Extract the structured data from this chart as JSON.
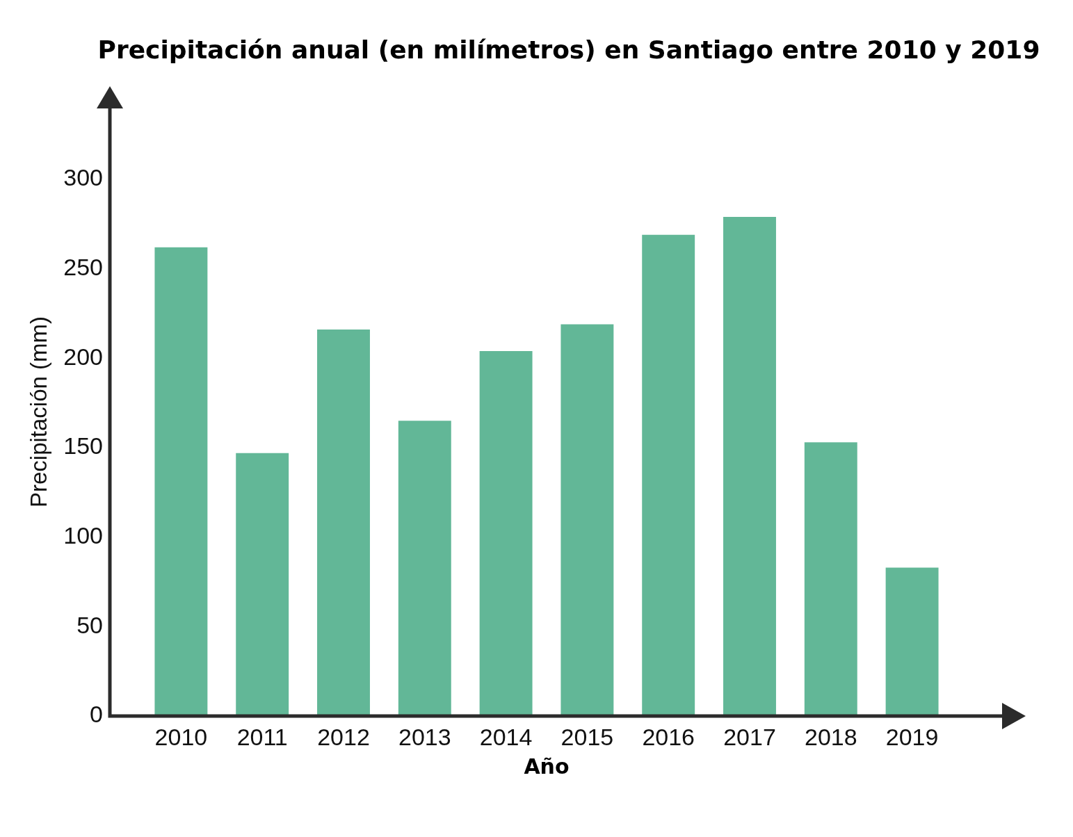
{
  "chart_data": {
    "type": "bar",
    "title": "Precipitación anual (en milímetros) en Santiago entre 2010 y 2019",
    "xlabel": "Año",
    "ylabel": "Precipitación (mm)",
    "categories": [
      "2010",
      "2011",
      "2012",
      "2013",
      "2014",
      "2015",
      "2016",
      "2017",
      "2018",
      "2019"
    ],
    "values": [
      262,
      147,
      216,
      165,
      204,
      219,
      269,
      279,
      153,
      83
    ],
    "color": "#62b797",
    "ylim": [
      0,
      340
    ],
    "yticks": [
      0,
      50,
      100,
      150,
      200,
      250,
      300
    ]
  }
}
